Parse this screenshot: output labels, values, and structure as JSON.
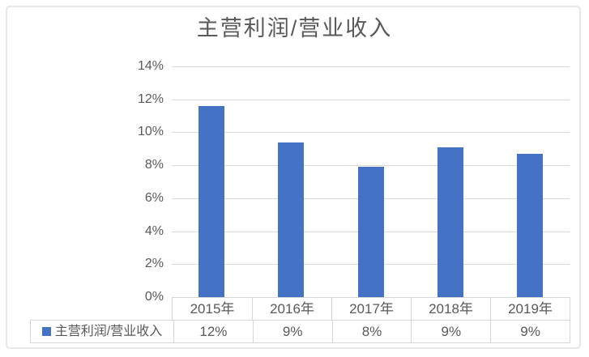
{
  "chart_data": {
    "type": "bar",
    "title": "主营利润/营业收入",
    "categories": [
      "2015年",
      "2016年",
      "2017年",
      "2018年",
      "2019年"
    ],
    "series": [
      {
        "name": "主营利润/营业收入",
        "values": [
          11.6,
          9.4,
          7.9,
          9.1,
          8.7
        ]
      }
    ],
    "data_table": {
      "legend_label": "主营利润/营业收入",
      "values": [
        "12%",
        "9%",
        "8%",
        "9%",
        "9%"
      ]
    },
    "y_axis": {
      "ticks": [
        "14%",
        "12%",
        "10%",
        "8%",
        "6%",
        "4%",
        "2%",
        "0%"
      ],
      "min": 0,
      "max": 14
    },
    "grid": true,
    "legend_position": "bottom-table-left",
    "colors": {
      "bar": "#4472C4",
      "text": "#595959",
      "gridline": "#d9d9d9",
      "table_border": "#d6d6d6",
      "frame_border": "#e8e8e8"
    }
  }
}
